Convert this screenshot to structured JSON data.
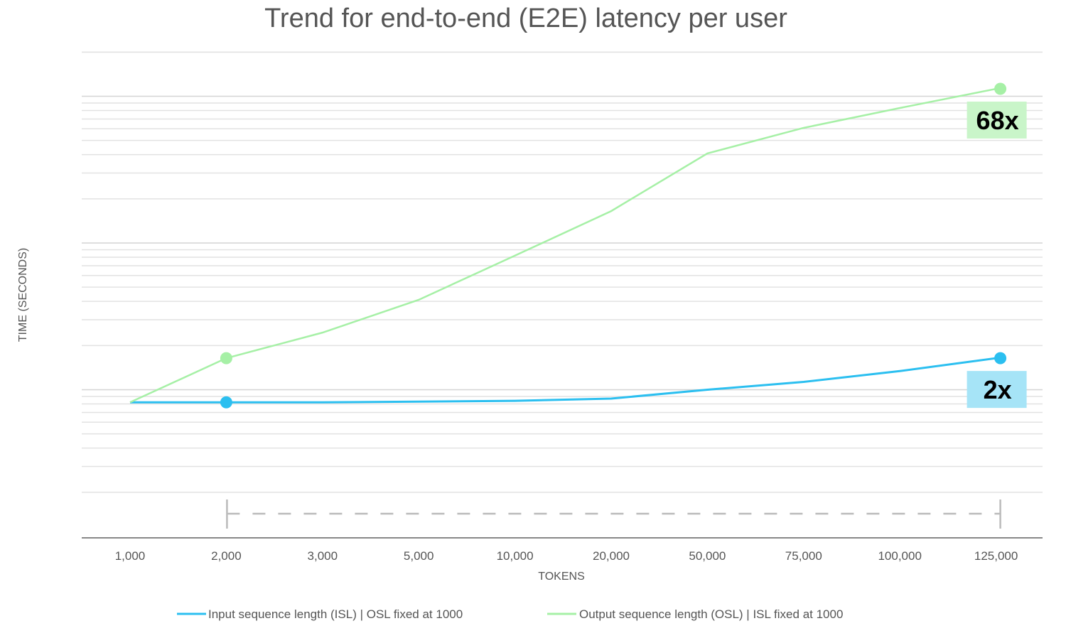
{
  "chart_data": {
    "type": "line",
    "title": "Trend for end-to-end (E2E) latency per user",
    "xlabel": "TOKENS",
    "ylabel": "TIME (SECONDS)",
    "x_scale": "categorical",
    "y_scale": "log",
    "y_tick_labels_shown": false,
    "ylim": [
      1,
      2000
    ],
    "grid": true,
    "legend_position": "bottom",
    "categories": [
      "1,000",
      "2,000",
      "3,000",
      "5,000",
      "10,000",
      "20,000",
      "50,000",
      "75,000",
      "100,000",
      "125,000"
    ],
    "series": [
      {
        "name": "Input sequence length (ISL) | OSL fixed at 1000",
        "color": "#2bbff0",
        "values": [
          8.2,
          8.2,
          8.2,
          8.3,
          8.4,
          8.7,
          10,
          11.3,
          13.4,
          16.4
        ],
        "markers_at": [
          "2,000",
          "125,000"
        ]
      },
      {
        "name": "Output sequence length (OSL) | ISL fixed at 1000",
        "color": "#a6f0a6",
        "values": [
          8.2,
          16.4,
          24.5,
          41,
          82,
          165,
          408,
          609,
          832,
          1124
        ],
        "markers_at": [
          "2,000",
          "125,000"
        ]
      }
    ],
    "annotations": [
      {
        "text": "68x",
        "series": 1,
        "at": "125,000",
        "bg": "#c9f5c9"
      },
      {
        "text": "2x",
        "series": 0,
        "at": "125,000",
        "bg": "#a6e4f7"
      }
    ],
    "bracket": {
      "from": "2,000",
      "to": "125,000",
      "style": "dashed"
    }
  }
}
